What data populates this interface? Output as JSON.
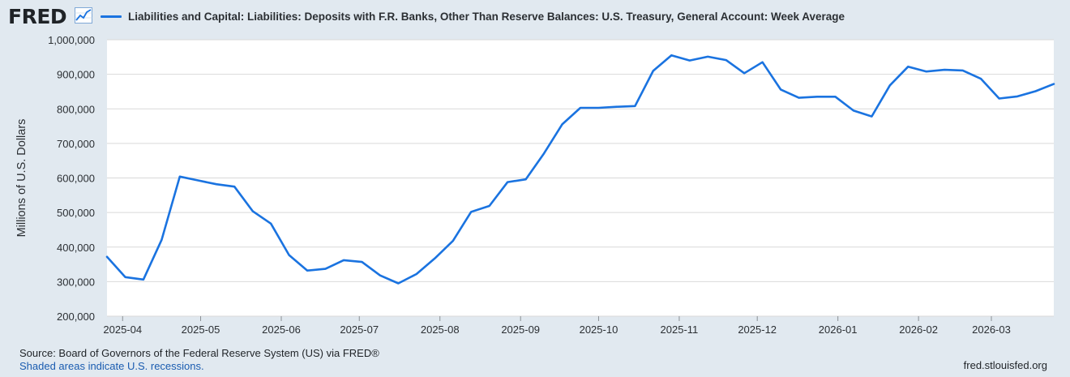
{
  "header": {
    "logo_text": "FRED",
    "legend_label": "Liabilities and Capital: Liabilities: Deposits with F.R. Banks, Other Than Reserve Balances: U.S. Treasury, General Account: Week Average"
  },
  "footer": {
    "source": "Source: Board of Governors of the Federal Reserve System (US) via FRED®",
    "recession_note": "Shaded areas indicate U.S. recessions.",
    "site": "fred.stlouisfed.org"
  },
  "colors": {
    "line": "#1a73e0",
    "plot_bg": "#ffffff",
    "page_bg": "#e1e9f0",
    "grid": "#d9d9d9"
  },
  "chart_data": {
    "type": "line",
    "title": "",
    "xlabel": "",
    "ylabel": "Millions of U.S. Dollars",
    "ylim": [
      200000,
      1000000
    ],
    "yticks": [
      200000,
      300000,
      400000,
      500000,
      600000,
      700000,
      800000,
      900000,
      1000000
    ],
    "ytick_labels": [
      "200,000",
      "300,000",
      "400,000",
      "500,000",
      "600,000",
      "700,000",
      "800,000",
      "900,000",
      "1,000,000"
    ],
    "xlim": [
      "2025-03-26",
      "2026-03-25"
    ],
    "xtick_dates": [
      "2025-04-01",
      "2025-05-01",
      "2025-06-01",
      "2025-07-01",
      "2025-08-01",
      "2025-09-01",
      "2025-10-01",
      "2025-11-01",
      "2025-12-01",
      "2026-01-01",
      "2026-02-01",
      "2026-03-01"
    ],
    "xtick_labels": [
      "2025-04",
      "2025-05",
      "2025-06",
      "2025-07",
      "2025-08",
      "2025-09",
      "2025-10",
      "2025-11",
      "2025-12",
      "2026-01",
      "2026-02",
      "2026-03"
    ],
    "grid": true,
    "legend": "top",
    "series": [
      {
        "name": "Liabilities and Capital: Liabilities: Deposits with F.R. Banks, Other Than Reserve Balances: U.S. Treasury, General Account: Week Average",
        "x": [
          "2025-03-26",
          "2025-04-02",
          "2025-04-09",
          "2025-04-16",
          "2025-04-23",
          "2025-04-30",
          "2025-05-07",
          "2025-05-14",
          "2025-05-21",
          "2025-05-28",
          "2025-06-04",
          "2025-06-11",
          "2025-06-18",
          "2025-06-25",
          "2025-07-02",
          "2025-07-09",
          "2025-07-16",
          "2025-07-23",
          "2025-07-30",
          "2025-08-06",
          "2025-08-13",
          "2025-08-20",
          "2025-08-27",
          "2025-09-03",
          "2025-09-10",
          "2025-09-17",
          "2025-09-24",
          "2025-10-01",
          "2025-10-08",
          "2025-10-15",
          "2025-10-22",
          "2025-10-29",
          "2025-11-05",
          "2025-11-12",
          "2025-11-19",
          "2025-11-26",
          "2025-12-03",
          "2025-12-10",
          "2025-12-17",
          "2025-12-24",
          "2025-12-31",
          "2026-01-07",
          "2026-01-14",
          "2026-01-21",
          "2026-01-28",
          "2026-02-04",
          "2026-02-11",
          "2026-02-18",
          "2026-02-25",
          "2026-03-04",
          "2026-03-11",
          "2026-03-18",
          "2026-03-25"
        ],
        "values": [
          372000,
          313000,
          306000,
          421000,
          604000,
          593000,
          582000,
          575000,
          504000,
          468000,
          377000,
          332000,
          337000,
          362000,
          357000,
          318000,
          295000,
          322000,
          367000,
          418000,
          502000,
          519000,
          588000,
          596000,
          671000,
          755000,
          803000,
          803000,
          806000,
          808000,
          910000,
          955000,
          940000,
          951000,
          941000,
          903000,
          935000,
          856000,
          832000,
          835000,
          835000,
          795000,
          778000,
          868000,
          922000,
          908000,
          913000,
          911000,
          887000,
          830000,
          836000,
          851000,
          872000
        ]
      }
    ]
  }
}
